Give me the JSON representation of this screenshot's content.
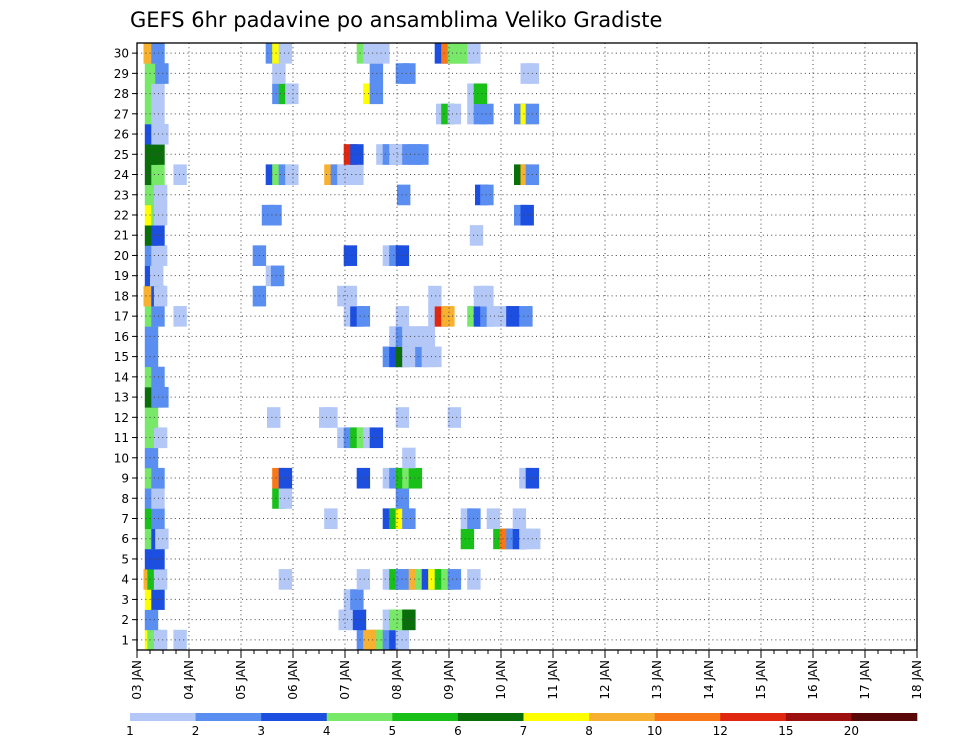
{
  "chart_data": {
    "type": "heatmap",
    "title": "GEFS 6hr padavine po ansamblima Veliko Gradiste",
    "xlabel": "",
    "ylabel": "",
    "x_ticks": [
      "03 JAN",
      "04 JAN",
      "05 JAN",
      "06 JAN",
      "07 JAN",
      "08 JAN",
      "09 JAN",
      "10 JAN",
      "11 JAN",
      "12 JAN",
      "13 JAN",
      "14 JAN",
      "15 JAN",
      "16 JAN",
      "17 JAN",
      "18 JAN"
    ],
    "y_ticks": [
      "1",
      "2",
      "3",
      "4",
      "5",
      "6",
      "7",
      "8",
      "9",
      "10",
      "11",
      "12",
      "13",
      "14",
      "15",
      "16",
      "17",
      "18",
      "19",
      "20",
      "21",
      "22",
      "23",
      "24",
      "25",
      "26",
      "27",
      "28",
      "29",
      "30"
    ],
    "xlim_steps": [
      0,
      60
    ],
    "steps_per_day": 4,
    "ylim": [
      0.5,
      30.5
    ],
    "grid": true,
    "legend": "bottom colorbar",
    "colorbar": {
      "labels": [
        "1",
        "2",
        "3",
        "4",
        "5",
        "6",
        "7",
        "8",
        "10",
        "12",
        "15",
        "20"
      ],
      "colors": [
        "#b4c8f8",
        "#5a8ef0",
        "#1c4ee0",
        "#78e868",
        "#18c018",
        "#0a6e0a",
        "#ffff00",
        "#f8b030",
        "#f87818",
        "#e02810",
        "#9e1010",
        "#5a0808"
      ]
    },
    "cell_value_legend": "color index: 1=1-2, 2=2-3, 3=3-4, 4=4-5, 5=5-6, 6=6-7, 7=7-8, 8=8-10, 9=10-12, 10=12-15",
    "cells": [
      [
        1,
        0.6,
        7
      ],
      [
        1,
        0.8,
        4
      ],
      [
        1,
        1.3,
        1
      ],
      [
        1,
        2.8,
        1
      ],
      [
        1,
        16.9,
        2
      ],
      [
        1,
        17.4,
        8
      ],
      [
        1,
        17.9,
        8
      ],
      [
        1,
        18.4,
        4
      ],
      [
        1,
        18.9,
        2
      ],
      [
        1,
        19.4,
        3
      ],
      [
        1,
        19.9,
        1
      ],
      [
        2,
        0.6,
        2
      ],
      [
        2,
        15.5,
        1
      ],
      [
        2,
        16.1,
        1
      ],
      [
        2,
        16.6,
        3
      ],
      [
        2,
        18.9,
        1
      ],
      [
        2,
        19.4,
        4
      ],
      [
        2,
        19.9,
        4
      ],
      [
        2,
        20.4,
        6
      ],
      [
        3,
        0.6,
        7
      ],
      [
        3,
        1.1,
        3
      ],
      [
        3,
        15.9,
        1
      ],
      [
        3,
        16.4,
        2
      ],
      [
        4,
        0.5,
        8
      ],
      [
        4,
        0.8,
        5
      ],
      [
        4,
        1.3,
        1
      ],
      [
        4,
        10.9,
        1
      ],
      [
        4,
        16.9,
        1
      ],
      [
        4,
        18.9,
        1
      ],
      [
        4,
        19.4,
        5
      ],
      [
        4,
        19.9,
        2
      ],
      [
        4,
        20.4,
        2
      ],
      [
        4,
        20.9,
        8
      ],
      [
        4,
        21.4,
        4
      ],
      [
        4,
        21.9,
        3
      ],
      [
        4,
        22.4,
        7
      ],
      [
        4,
        22.9,
        5
      ],
      [
        4,
        23.4,
        4
      ],
      [
        4,
        23.9,
        2
      ],
      [
        4,
        25.4,
        1
      ],
      [
        5,
        0.6,
        3
      ],
      [
        5,
        1.1,
        3
      ],
      [
        6,
        0.6,
        4
      ],
      [
        6,
        1.1,
        3
      ],
      [
        6,
        1.4,
        1
      ],
      [
        6,
        24.9,
        5
      ],
      [
        6,
        27.4,
        5
      ],
      [
        6,
        27.9,
        9
      ],
      [
        6,
        28.4,
        2
      ],
      [
        6,
        28.9,
        3
      ],
      [
        6,
        29.4,
        1
      ],
      [
        6,
        30.0,
        1
      ],
      [
        7,
        0.6,
        5
      ],
      [
        7,
        1.1,
        2
      ],
      [
        7,
        14.4,
        1
      ],
      [
        7,
        18.9,
        3
      ],
      [
        7,
        19.4,
        5
      ],
      [
        7,
        19.9,
        7
      ],
      [
        7,
        20.4,
        2
      ],
      [
        7,
        24.9,
        1
      ],
      [
        7,
        25.4,
        2
      ],
      [
        7,
        26.9,
        1
      ],
      [
        7,
        28.9,
        1
      ],
      [
        8,
        0.6,
        2
      ],
      [
        8,
        1.1,
        1
      ],
      [
        8,
        10.4,
        5
      ],
      [
        8,
        10.9,
        1
      ],
      [
        8,
        19.9,
        2
      ],
      [
        9,
        0.6,
        4
      ],
      [
        9,
        1.1,
        2
      ],
      [
        9,
        10.4,
        9
      ],
      [
        9,
        10.9,
        3
      ],
      [
        9,
        16.9,
        3
      ],
      [
        9,
        18.9,
        1
      ],
      [
        9,
        19.4,
        2
      ],
      [
        9,
        19.9,
        5
      ],
      [
        9,
        20.4,
        4
      ],
      [
        9,
        20.9,
        5
      ],
      [
        9,
        29.4,
        1
      ],
      [
        9,
        29.9,
        3
      ],
      [
        10,
        0.6,
        2
      ],
      [
        10,
        20.4,
        1
      ],
      [
        11,
        0.6,
        4
      ],
      [
        11,
        1.1,
        4
      ],
      [
        11,
        1.3,
        1
      ],
      [
        11,
        15.4,
        1
      ],
      [
        11,
        15.9,
        2
      ],
      [
        11,
        16.4,
        5
      ],
      [
        11,
        16.9,
        4
      ],
      [
        11,
        17.4,
        1
      ],
      [
        11,
        17.9,
        3
      ],
      [
        12,
        0.6,
        4
      ],
      [
        12,
        10.0,
        1
      ],
      [
        12,
        14.0,
        1
      ],
      [
        12,
        14.4,
        1
      ],
      [
        12,
        19.9,
        1
      ],
      [
        12,
        23.9,
        1
      ],
      [
        13,
        0.6,
        6
      ],
      [
        13,
        1.1,
        2
      ],
      [
        13,
        1.4,
        2
      ],
      [
        14,
        0.6,
        4
      ],
      [
        14,
        1.1,
        2
      ],
      [
        15,
        0.6,
        2
      ],
      [
        15,
        18.9,
        2
      ],
      [
        15,
        19.4,
        3
      ],
      [
        15,
        19.9,
        6
      ],
      [
        15,
        20.4,
        1
      ],
      [
        15,
        20.9,
        1
      ],
      [
        15,
        21.4,
        2
      ],
      [
        15,
        21.9,
        1
      ],
      [
        15,
        22.4,
        1
      ],
      [
        16,
        0.6,
        2
      ],
      [
        16,
        19.4,
        1
      ],
      [
        16,
        19.9,
        2
      ],
      [
        16,
        20.4,
        1
      ],
      [
        16,
        20.9,
        1
      ],
      [
        16,
        21.4,
        1
      ],
      [
        16,
        21.9,
        1
      ],
      [
        17,
        0.6,
        4
      ],
      [
        17,
        1.1,
        2
      ],
      [
        17,
        2.8,
        1
      ],
      [
        17,
        15.9,
        1
      ],
      [
        17,
        16.4,
        3
      ],
      [
        17,
        16.9,
        2
      ],
      [
        17,
        19.9,
        1
      ],
      [
        17,
        22.4,
        1
      ],
      [
        17,
        22.9,
        10
      ],
      [
        17,
        23.4,
        8
      ],
      [
        17,
        25.4,
        4
      ],
      [
        17,
        25.9,
        3
      ],
      [
        17,
        26.4,
        2
      ],
      [
        17,
        26.9,
        1
      ],
      [
        17,
        27.4,
        1
      ],
      [
        17,
        28.4,
        3
      ],
      [
        17,
        29.4,
        2
      ],
      [
        18,
        0.5,
        8
      ],
      [
        18,
        1.1,
        3
      ],
      [
        18,
        1.3,
        1
      ],
      [
        18,
        8.9,
        2
      ],
      [
        18,
        15.4,
        1
      ],
      [
        18,
        15.9,
        1
      ],
      [
        18,
        22.4,
        1
      ],
      [
        18,
        25.9,
        1
      ],
      [
        18,
        26.4,
        1
      ],
      [
        19,
        0.6,
        3
      ],
      [
        19,
        1.0,
        1
      ],
      [
        19,
        9.9,
        1
      ],
      [
        19,
        10.3,
        2
      ],
      [
        20,
        0.6,
        2
      ],
      [
        20,
        1.1,
        1
      ],
      [
        20,
        1.3,
        1
      ],
      [
        20,
        8.9,
        2
      ],
      [
        20,
        15.9,
        3
      ],
      [
        20,
        18.9,
        1
      ],
      [
        20,
        19.4,
        2
      ],
      [
        20,
        19.9,
        3
      ],
      [
        21,
        0.6,
        6
      ],
      [
        21,
        1.1,
        3
      ],
      [
        21,
        25.6,
        1
      ],
      [
        22,
        0.6,
        7
      ],
      [
        22,
        1.1,
        4
      ],
      [
        22,
        1.3,
        1
      ],
      [
        22,
        9.6,
        2
      ],
      [
        22,
        10.1,
        2
      ],
      [
        22,
        29.0,
        2
      ],
      [
        22,
        29.5,
        3
      ],
      [
        23,
        0.6,
        4
      ],
      [
        23,
        1.3,
        1
      ],
      [
        23,
        20.0,
        2
      ],
      [
        23,
        26.0,
        3
      ],
      [
        23,
        26.4,
        2
      ],
      [
        24,
        0.6,
        6
      ],
      [
        24,
        1.1,
        4
      ],
      [
        24,
        2.8,
        1
      ],
      [
        24,
        9.9,
        3
      ],
      [
        24,
        10.4,
        4
      ],
      [
        24,
        10.9,
        2
      ],
      [
        24,
        11.4,
        1
      ],
      [
        24,
        14.4,
        8
      ],
      [
        24,
        14.9,
        2
      ],
      [
        24,
        15.4,
        1
      ],
      [
        24,
        15.9,
        1
      ],
      [
        24,
        16.4,
        1
      ],
      [
        24,
        29.0,
        6
      ],
      [
        24,
        29.5,
        8
      ],
      [
        24,
        29.9,
        2
      ],
      [
        25,
        0.6,
        6
      ],
      [
        25,
        1.1,
        6
      ],
      [
        25,
        15.9,
        10
      ],
      [
        25,
        16.4,
        3
      ],
      [
        25,
        18.4,
        1
      ],
      [
        25,
        18.9,
        2
      ],
      [
        25,
        19.4,
        1
      ],
      [
        25,
        19.9,
        1
      ],
      [
        25,
        20.4,
        2
      ],
      [
        25,
        20.9,
        2
      ],
      [
        25,
        21.4,
        2
      ],
      [
        26,
        0.6,
        3
      ],
      [
        26,
        1.1,
        1
      ],
      [
        26,
        1.4,
        1
      ],
      [
        27,
        0.6,
        4
      ],
      [
        27,
        1.1,
        1
      ],
      [
        27,
        23.0,
        1
      ],
      [
        27,
        23.4,
        5
      ],
      [
        27,
        23.9,
        1
      ],
      [
        27,
        25.4,
        1
      ],
      [
        27,
        25.9,
        2
      ],
      [
        27,
        26.4,
        2
      ],
      [
        27,
        29.0,
        2
      ],
      [
        27,
        29.5,
        7
      ],
      [
        27,
        29.9,
        2
      ],
      [
        28,
        0.6,
        4
      ],
      [
        28,
        1.1,
        1
      ],
      [
        28,
        10.4,
        2
      ],
      [
        28,
        10.9,
        5
      ],
      [
        28,
        11.4,
        1
      ],
      [
        28,
        17.4,
        7
      ],
      [
        28,
        17.9,
        2
      ],
      [
        28,
        25.4,
        1
      ],
      [
        28,
        25.9,
        5
      ],
      [
        29,
        0.6,
        4
      ],
      [
        29,
        1.1,
        4
      ],
      [
        29,
        1.4,
        2
      ],
      [
        29,
        10.4,
        1
      ],
      [
        29,
        17.9,
        2
      ],
      [
        29,
        19.9,
        2
      ],
      [
        29,
        20.4,
        2
      ],
      [
        29,
        29.5,
        1
      ],
      [
        29,
        29.9,
        1
      ],
      [
        30,
        0.5,
        8
      ],
      [
        30,
        1.1,
        2
      ],
      [
        30,
        9.9,
        2
      ],
      [
        30,
        10.4,
        7
      ],
      [
        30,
        10.9,
        1
      ],
      [
        30,
        16.9,
        4
      ],
      [
        30,
        17.4,
        1
      ],
      [
        30,
        17.9,
        1
      ],
      [
        30,
        18.4,
        1
      ],
      [
        30,
        22.9,
        3
      ],
      [
        30,
        23.4,
        9
      ],
      [
        30,
        23.9,
        4
      ],
      [
        30,
        24.4,
        4
      ],
      [
        30,
        24.9,
        4
      ],
      [
        30,
        25.4,
        1
      ]
    ]
  }
}
